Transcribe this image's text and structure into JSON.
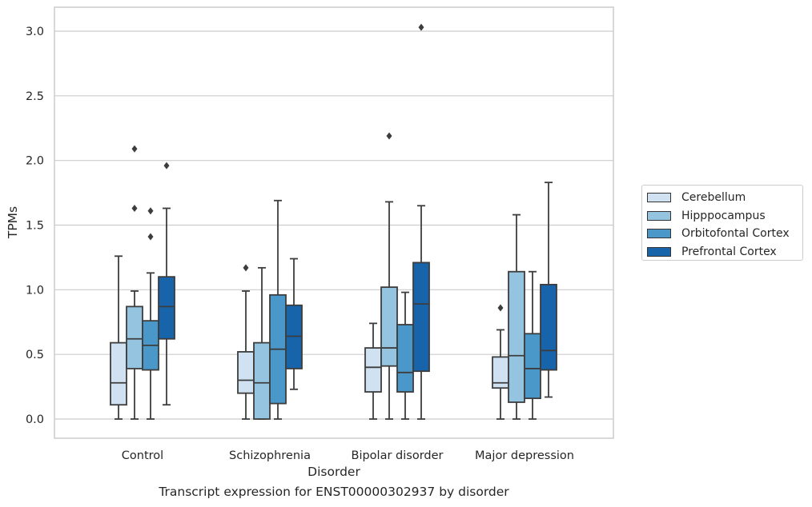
{
  "caption": "Transcript expression for ENST00000302937 by disorder",
  "chart_data": {
    "type": "box",
    "title": "",
    "xlabel": "Disorder",
    "ylabel": "TPMs",
    "ylim": [
      -0.15,
      3.2
    ],
    "yticks": [
      0.0,
      0.5,
      1.0,
      1.5,
      2.0,
      2.5,
      3.0
    ],
    "ytick_labels": [
      "0.0",
      "0.5",
      "1.0",
      "1.5",
      "2.0",
      "2.5",
      "3.0"
    ],
    "grid": "horizontal",
    "legend_position": "right, outside plot",
    "categories": [
      "Control",
      "Schizophrenia",
      "Bipolar disorder",
      "Major depression"
    ],
    "series": [
      {
        "name": "Cerebellum",
        "color": "#d0e1f2",
        "boxes": [
          {
            "whisker_low": 0.0,
            "q1": 0.11,
            "median": 0.28,
            "q3": 0.59,
            "whisker_high": 1.26,
            "outliers": []
          },
          {
            "whisker_low": 0.0,
            "q1": 0.2,
            "median": 0.3,
            "q3": 0.52,
            "whisker_high": 0.99,
            "outliers": [
              1.17
            ]
          },
          {
            "whisker_low": 0.0,
            "q1": 0.21,
            "median": 0.4,
            "q3": 0.55,
            "whisker_high": 0.74,
            "outliers": []
          },
          {
            "whisker_low": 0.0,
            "q1": 0.24,
            "median": 0.28,
            "q3": 0.48,
            "whisker_high": 0.69,
            "outliers": [
              0.86
            ]
          }
        ]
      },
      {
        "name": "Hipppocampus",
        "color": "#94c4df",
        "boxes": [
          {
            "whisker_low": 0.0,
            "q1": 0.39,
            "median": 0.62,
            "q3": 0.87,
            "whisker_high": 0.99,
            "outliers": [
              1.63,
              2.09
            ]
          },
          {
            "whisker_low": 0.0,
            "q1": 0.0,
            "median": 0.28,
            "q3": 0.59,
            "whisker_high": 1.17,
            "outliers": []
          },
          {
            "whisker_low": 0.0,
            "q1": 0.41,
            "median": 0.55,
            "q3": 1.02,
            "whisker_high": 1.68,
            "outliers": [
              2.19
            ]
          },
          {
            "whisker_low": 0.0,
            "q1": 0.13,
            "median": 0.49,
            "q3": 1.14,
            "whisker_high": 1.58,
            "outliers": []
          }
        ]
      },
      {
        "name": "Orbitofontal Cortex",
        "color": "#4a98c9",
        "boxes": [
          {
            "whisker_low": 0.0,
            "q1": 0.38,
            "median": 0.57,
            "q3": 0.76,
            "whisker_high": 1.13,
            "outliers": [
              1.41,
              1.61
            ]
          },
          {
            "whisker_low": 0.0,
            "q1": 0.12,
            "median": 0.54,
            "q3": 0.96,
            "whisker_high": 1.69,
            "outliers": []
          },
          {
            "whisker_low": 0.0,
            "q1": 0.21,
            "median": 0.36,
            "q3": 0.73,
            "whisker_high": 0.98,
            "outliers": []
          },
          {
            "whisker_low": 0.0,
            "q1": 0.16,
            "median": 0.39,
            "q3": 0.66,
            "whisker_high": 1.14,
            "outliers": []
          }
        ]
      },
      {
        "name": "Prefrontal Cortex",
        "color": "#1764ab",
        "boxes": [
          {
            "whisker_low": 0.11,
            "q1": 0.62,
            "median": 0.87,
            "q3": 1.1,
            "whisker_high": 1.63,
            "outliers": [
              1.96
            ]
          },
          {
            "whisker_low": 0.23,
            "q1": 0.39,
            "median": 0.64,
            "q3": 0.88,
            "whisker_high": 1.24,
            "outliers": []
          },
          {
            "whisker_low": 0.0,
            "q1": 0.37,
            "median": 0.89,
            "q3": 1.21,
            "whisker_high": 1.65,
            "outliers": [
              3.03
            ]
          },
          {
            "whisker_low": 0.17,
            "q1": 0.38,
            "median": 0.53,
            "q3": 1.04,
            "whisker_high": 1.83,
            "outliers": []
          }
        ]
      }
    ]
  }
}
